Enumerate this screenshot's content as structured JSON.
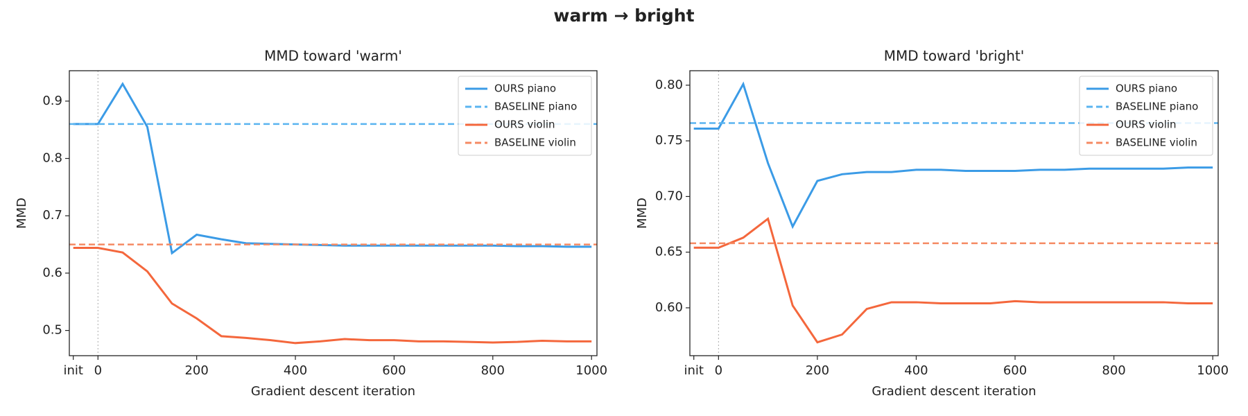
{
  "suptitle": "warm → bright",
  "chart_data": [
    {
      "type": "line",
      "title": "MMD toward  'warm'",
      "xlabel": "Gradient descent iteration",
      "ylabel": "MMD",
      "x": [
        -50,
        0,
        50,
        100,
        150,
        200,
        250,
        300,
        350,
        400,
        450,
        500,
        550,
        600,
        650,
        700,
        750,
        800,
        850,
        900,
        950,
        1000
      ],
      "xlim": [
        -58,
        1011
      ],
      "xticks": [
        {
          "value": -50,
          "label": "init"
        },
        0,
        200,
        400,
        600,
        800,
        1000
      ],
      "ylim": [
        0.456,
        0.953
      ],
      "yticks": [
        0.5,
        0.6,
        0.7,
        0.8,
        0.9
      ],
      "legend": "upper right",
      "series": [
        {
          "name": "OURS piano",
          "color": "#3b9be6",
          "values": [
            0.86,
            0.86,
            0.93,
            0.855,
            0.635,
            0.667,
            0.659,
            0.652,
            0.651,
            0.65,
            0.649,
            0.648,
            0.648,
            0.648,
            0.648,
            0.648,
            0.648,
            0.648,
            0.647,
            0.647,
            0.646,
            0.646
          ]
        },
        {
          "name": "BASELINE piano",
          "color": "#5ab4f0",
          "dashed": true,
          "value": 0.86
        },
        {
          "name": "OURS violin",
          "color": "#f4673c",
          "values": [
            0.644,
            0.644,
            0.636,
            0.603,
            0.547,
            0.521,
            0.49,
            0.487,
            0.483,
            0.478,
            0.481,
            0.485,
            0.483,
            0.483,
            0.481,
            0.481,
            0.48,
            0.479,
            0.48,
            0.482,
            0.481,
            0.481
          ]
        },
        {
          "name": "BASELINE violin",
          "color": "#f58a63",
          "dashed": true,
          "value": 0.65
        }
      ]
    },
    {
      "type": "line",
      "title": "MMD toward  'bright'",
      "xlabel": "Gradient descent iteration",
      "ylabel": "MMD",
      "x": [
        -50,
        0,
        50,
        100,
        150,
        200,
        250,
        300,
        350,
        400,
        450,
        500,
        550,
        600,
        650,
        700,
        750,
        800,
        850,
        900,
        950,
        1000
      ],
      "xlim": [
        -58,
        1011
      ],
      "xticks": [
        {
          "value": -50,
          "label": "init"
        },
        0,
        200,
        400,
        600,
        800,
        1000
      ],
      "ylim": [
        0.557,
        0.813
      ],
      "yticks": [
        {
          "value": 0.6,
          "label": "0.60"
        },
        0.65,
        {
          "value": 0.7,
          "label": "0.70"
        },
        0.75,
        {
          "value": 0.8,
          "label": "0.80"
        }
      ],
      "legend": "upper right",
      "series": [
        {
          "name": "OURS piano",
          "color": "#3b9be6",
          "values": [
            0.761,
            0.761,
            0.801,
            0.73,
            0.673,
            0.714,
            0.72,
            0.722,
            0.722,
            0.724,
            0.724,
            0.723,
            0.723,
            0.723,
            0.724,
            0.724,
            0.725,
            0.725,
            0.725,
            0.725,
            0.726,
            0.726
          ]
        },
        {
          "name": "BASELINE piano",
          "color": "#5ab4f0",
          "dashed": true,
          "value": 0.766
        },
        {
          "name": "OURS violin",
          "color": "#f4673c",
          "values": [
            0.654,
            0.654,
            0.663,
            0.68,
            0.602,
            0.569,
            0.576,
            0.599,
            0.605,
            0.605,
            0.604,
            0.604,
            0.604,
            0.606,
            0.605,
            0.605,
            0.605,
            0.605,
            0.605,
            0.605,
            0.604,
            0.604
          ]
        },
        {
          "name": "BASELINE violin",
          "color": "#f58a63",
          "dashed": true,
          "value": 0.658
        }
      ]
    }
  ]
}
